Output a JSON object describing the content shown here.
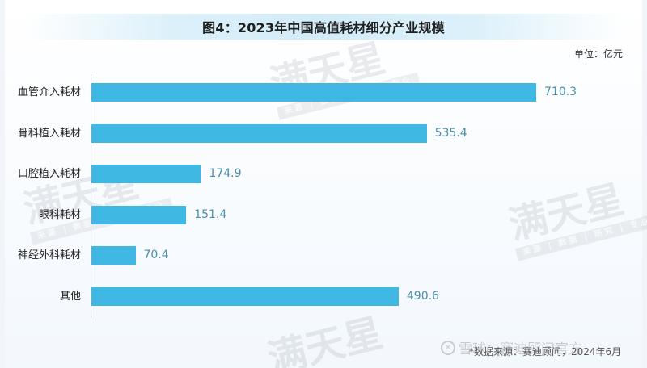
{
  "header": {
    "title": "图4：2023年中国高值耗材细分产业规模",
    "unit": "单位：亿元"
  },
  "colors": {
    "bar": "#3fb8e3",
    "value_label": "#4a8fa8",
    "title_banner": "#d3ecf8"
  },
  "chart_data": {
    "type": "bar",
    "orientation": "horizontal",
    "title": "图4：2023年中国高值耗材细分产业规模",
    "unit": "亿元",
    "xlabel": "",
    "ylabel": "",
    "categories": [
      "血管介入耗材",
      "骨科植入耗材",
      "口腔植入耗材",
      "眼科耗材",
      "神经外科耗材",
      "其他"
    ],
    "values": [
      710.3,
      535.4,
      174.9,
      151.4,
      70.4,
      490.6
    ],
    "value_labels": [
      "710.3",
      "535.4",
      "174.9",
      "151.4",
      "70.4",
      "490.6"
    ],
    "xlim": [
      0,
      710.3
    ],
    "grid": false,
    "legend": null
  },
  "footer": {
    "source": "*数据来源：赛迪顾问，2024年6月",
    "platform_watermark": "雪球：赛迪顾问官方"
  },
  "watermarks": {
    "text": "满天星",
    "sub": "来源 | 数据 | 研究 | 专业"
  }
}
